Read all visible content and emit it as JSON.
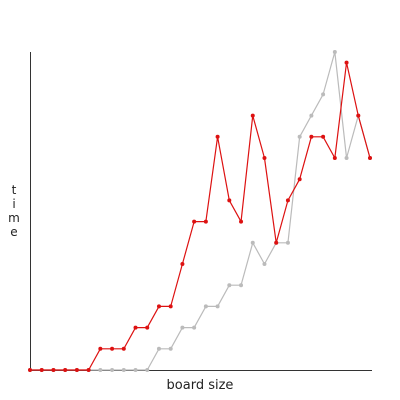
{
  "chart_data": {
    "type": "line",
    "title": "",
    "xlabel": "board size",
    "ylabel": "time",
    "x": [
      1,
      2,
      3,
      4,
      5,
      6,
      7,
      8,
      9,
      10,
      11,
      12,
      13,
      14,
      15,
      16,
      17,
      18,
      19,
      20,
      21,
      22,
      23,
      24,
      25,
      26,
      27,
      28,
      29,
      30
    ],
    "xlim": [
      1,
      30
    ],
    "ylim": [
      0,
      15
    ],
    "grid": false,
    "legend": "none",
    "series": [
      {
        "color": "#dd1111",
        "values": [
          0,
          0,
          0,
          0,
          0,
          0,
          1,
          1,
          1,
          2,
          2,
          3,
          3,
          5,
          7,
          7,
          11,
          8,
          7,
          12,
          10,
          6,
          8,
          9,
          11,
          11,
          10,
          14.5,
          12,
          10
        ]
      },
      {
        "color": "#bbbbbb",
        "values": [
          0,
          0,
          0,
          0,
          0,
          0,
          0,
          0,
          0,
          0,
          0,
          1,
          1,
          2,
          2,
          3,
          3,
          4,
          4,
          6,
          5,
          6,
          6,
          11,
          12,
          13,
          15,
          10,
          12,
          10
        ]
      }
    ]
  }
}
